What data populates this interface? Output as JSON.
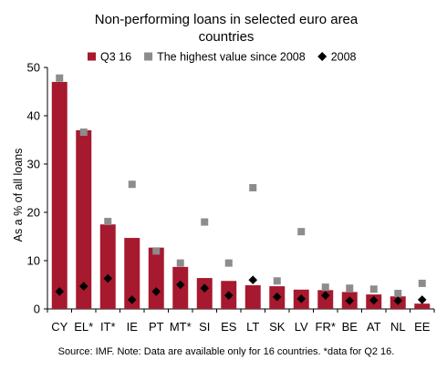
{
  "chart_data": {
    "type": "bar",
    "title_lines": [
      "Non-performing loans in selected euro area",
      "countries"
    ],
    "ylabel": "As a % of all loans",
    "xlabel": "",
    "ylim": [
      0,
      50
    ],
    "yticks": [
      0,
      10,
      20,
      30,
      40,
      50
    ],
    "grid": false,
    "legend_position": "top",
    "categories": [
      "CY",
      "EL*",
      "IT*",
      "IE",
      "PT",
      "MT*",
      "SI",
      "ES",
      "LT",
      "SK",
      "LV",
      "FR*",
      "BE",
      "AT",
      "NL",
      "EE"
    ],
    "series": [
      {
        "name": "Q3 16",
        "kind": "bar",
        "color": "#a6192e",
        "values": [
          47.0,
          37.0,
          17.5,
          14.7,
          12.7,
          8.7,
          6.4,
          5.8,
          4.9,
          4.7,
          4.0,
          3.9,
          3.5,
          3.0,
          2.6,
          1.1
        ]
      },
      {
        "name": "The highest value since 2008",
        "kind": "marker-square",
        "color": "#8c8c8c",
        "values": [
          47.8,
          36.6,
          18.1,
          25.8,
          12.0,
          9.5,
          18.0,
          9.5,
          25.1,
          5.8,
          16.0,
          4.5,
          4.3,
          4.1,
          3.2,
          5.3
        ]
      },
      {
        "name": "2008",
        "kind": "marker-diamond",
        "color": "#000000",
        "values": [
          3.6,
          4.7,
          6.3,
          1.9,
          3.6,
          5.0,
          4.3,
          2.8,
          6.0,
          2.5,
          2.1,
          2.8,
          1.7,
          1.8,
          1.7,
          1.9
        ]
      }
    ],
    "source": "Source: IMF. Note: Data are available only for 16 countries. *data for Q2 16."
  }
}
